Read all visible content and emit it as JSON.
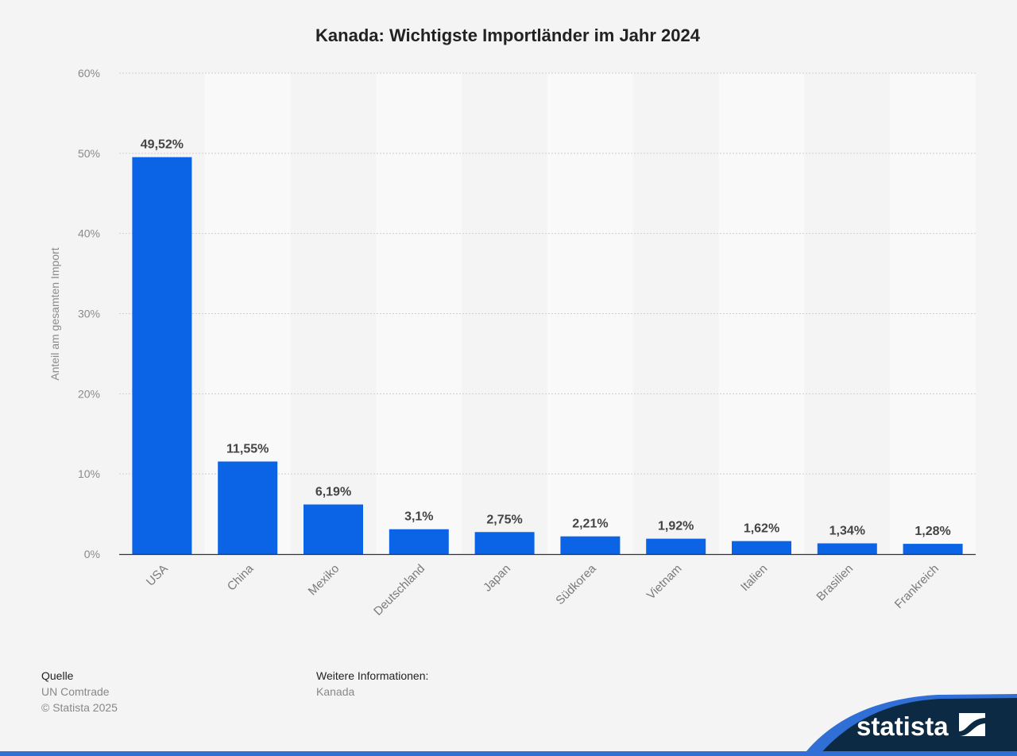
{
  "chart_data": {
    "type": "bar",
    "title": "Kanada: Wichtigste Importländer im Jahr 2024",
    "xlabel": "",
    "ylabel": "Anteil am gesamten Import",
    "categories": [
      "USA",
      "China",
      "Mexiko",
      "Deutschland",
      "Japan",
      "Südkorea",
      "Vietnam",
      "Italien",
      "Brasilien",
      "Frankreich"
    ],
    "values": [
      49.52,
      11.55,
      6.19,
      3.1,
      2.75,
      2.21,
      1.92,
      1.62,
      1.34,
      1.28
    ],
    "data_labels": [
      "49,52%",
      "11,55%",
      "6,19%",
      "3,1%",
      "2,75%",
      "2,21%",
      "1,92%",
      "1,62%",
      "1,34%",
      "1,28%"
    ],
    "ylim": [
      0,
      60
    ],
    "yticks": [
      0,
      10,
      20,
      30,
      40,
      50,
      60
    ],
    "ytick_labels": [
      "0%",
      "10%",
      "20%",
      "30%",
      "40%",
      "50%",
      "60%"
    ],
    "grid": true,
    "legend": "none",
    "bar_color": "#0b63e5"
  },
  "footer": {
    "source_heading": "Quelle",
    "source": "UN Comtrade",
    "copyright": "© Statista 2025",
    "info_heading": "Weitere Informationen:",
    "info": "Kanada"
  },
  "logo": {
    "text": "statista",
    "navy": "#0d2a44",
    "accent": "#2f6fd6"
  }
}
